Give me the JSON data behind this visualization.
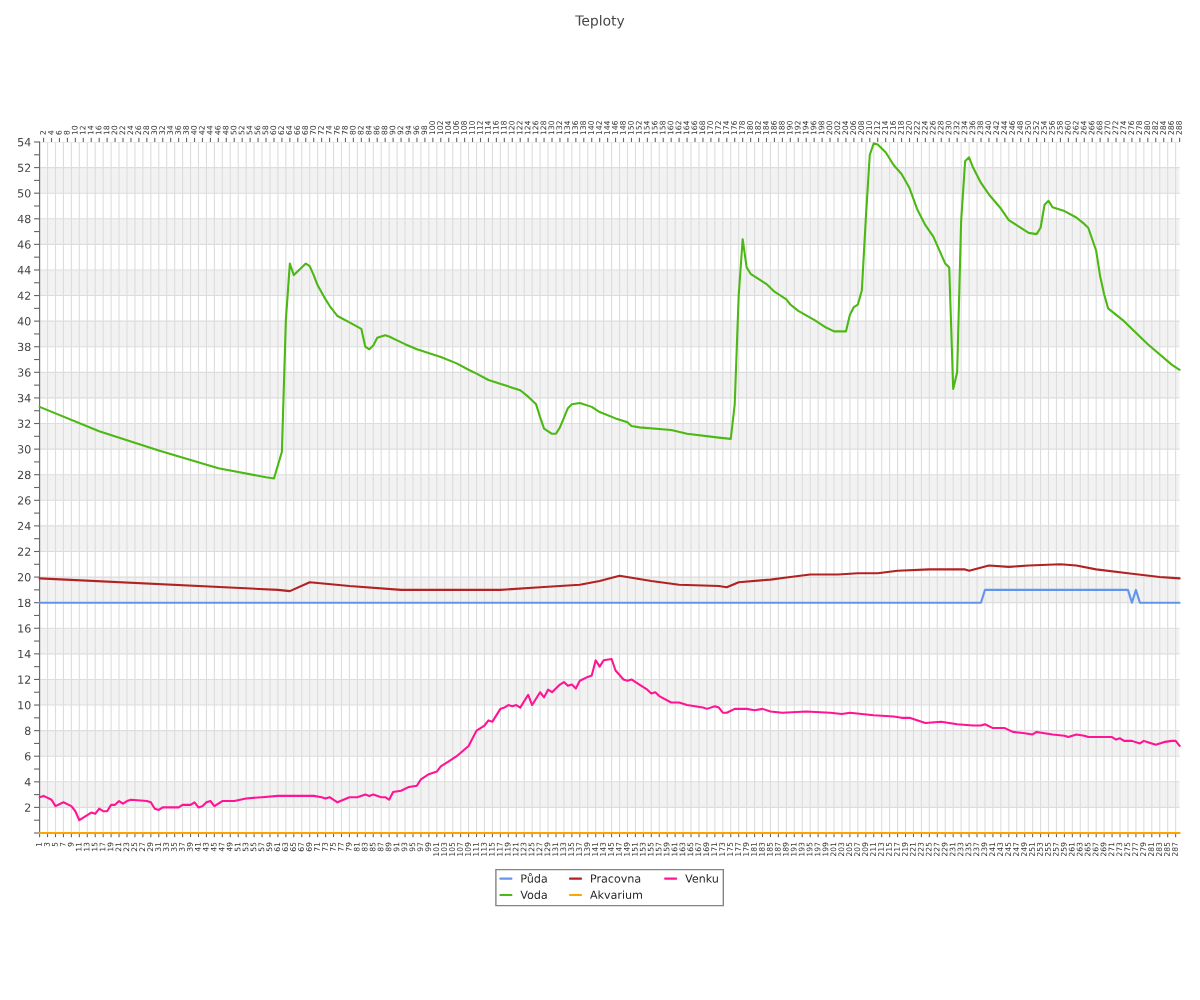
{
  "chart_data": {
    "type": "line",
    "title": "Teploty",
    "xlim": [
      1,
      288
    ],
    "xticks": [
      1,
      3,
      5,
      7,
      9,
      11,
      13,
      15,
      17,
      19,
      21,
      23,
      25,
      27,
      29,
      31,
      33,
      35,
      37,
      39,
      41,
      43,
      45,
      47,
      49,
      51,
      53,
      55,
      57,
      59,
      61,
      63,
      65,
      67,
      69,
      71,
      73,
      75,
      77,
      79,
      81,
      83,
      85,
      87,
      89,
      91,
      93,
      95,
      97,
      99,
      101,
      103,
      105,
      107,
      109,
      111,
      113,
      115,
      117,
      119,
      121,
      123,
      125,
      127,
      129,
      131,
      133,
      135,
      137,
      139,
      141,
      143,
      145,
      147,
      149,
      151,
      153,
      155,
      157,
      159,
      161,
      163,
      165,
      167,
      169,
      171,
      173,
      175,
      177,
      179,
      181,
      183,
      185,
      187,
      189,
      191,
      193,
      195,
      197,
      199,
      201,
      203,
      205,
      207,
      209,
      211,
      213,
      215,
      217,
      219,
      221,
      223,
      225,
      227,
      229,
      231,
      233,
      235,
      237,
      239,
      241,
      243,
      245,
      247,
      249,
      251,
      253,
      255,
      257,
      259,
      261,
      263,
      265,
      267,
      269,
      271,
      273,
      275,
      277,
      279,
      281,
      283,
      285,
      287
    ],
    "x2lim": [
      1,
      288
    ],
    "x2ticks": [
      2,
      4,
      6,
      8,
      10,
      12,
      14,
      16,
      18,
      20,
      22,
      24,
      26,
      28,
      30,
      32,
      34,
      36,
      38,
      40,
      42,
      44,
      46,
      48,
      50,
      52,
      54,
      56,
      58,
      60,
      62,
      64,
      66,
      68,
      70,
      72,
      74,
      76,
      78,
      80,
      82,
      84,
      86,
      88,
      90,
      92,
      94,
      96,
      98,
      100,
      102,
      104,
      106,
      108,
      110,
      112,
      114,
      116,
      118,
      120,
      122,
      124,
      126,
      128,
      130,
      132,
      134,
      136,
      138,
      140,
      142,
      144,
      146,
      148,
      150,
      152,
      154,
      156,
      158,
      160,
      162,
      164,
      166,
      168,
      170,
      172,
      174,
      176,
      178,
      180,
      182,
      184,
      186,
      188,
      190,
      192,
      194,
      196,
      198,
      200,
      202,
      204,
      206,
      208,
      210,
      212,
      214,
      216,
      218,
      220,
      222,
      224,
      226,
      228,
      230,
      232,
      234,
      236,
      238,
      240,
      242,
      244,
      246,
      248,
      250,
      252,
      254,
      256,
      258,
      260,
      262,
      264,
      266,
      268,
      270,
      272,
      274,
      276,
      278,
      280,
      282,
      284,
      286,
      288
    ],
    "ylim": [
      0,
      54
    ],
    "yticks": [
      {
        "value": 0,
        "label": null
      },
      {
        "value": 1,
        "label": null
      },
      2,
      {
        "value": 3,
        "label": null
      },
      4,
      {
        "value": 5,
        "label": null
      },
      6,
      {
        "value": 7,
        "label": null
      },
      8,
      {
        "value": 9,
        "label": null
      },
      10,
      {
        "value": 11,
        "label": null
      },
      12,
      {
        "value": 13,
        "label": null
      },
      14,
      {
        "value": 15,
        "label": null
      },
      16,
      {
        "value": 17,
        "label": null
      },
      18,
      {
        "value": 19,
        "label": null
      },
      20,
      {
        "value": 21,
        "label": null
      },
      22,
      {
        "value": 23,
        "label": null
      },
      24,
      {
        "value": 25,
        "label": null
      },
      26,
      {
        "value": 27,
        "label": null
      },
      28,
      {
        "value": 29,
        "label": null
      },
      30,
      {
        "value": 31,
        "label": null
      },
      32,
      {
        "value": 33,
        "label": null
      },
      34,
      {
        "value": 35,
        "label": null
      },
      36,
      {
        "value": 37,
        "label": null
      },
      38,
      {
        "value": 39,
        "label": null
      },
      40,
      {
        "value": 41,
        "label": null
      },
      42,
      {
        "value": 43,
        "label": null
      },
      44,
      {
        "value": 45,
        "label": null
      },
      46,
      {
        "value": 47,
        "label": null
      },
      48,
      {
        "value": 49,
        "label": null
      },
      50,
      {
        "value": 51,
        "label": null
      },
      52,
      {
        "value": 53,
        "label": null
      },
      54
    ],
    "grid": true,
    "legend": "bottom",
    "marker": "none",
    "line_style": "solid",
    "series": [
      {
        "name": "Půda",
        "color": "#6495ed",
        "x": [
          1,
          238,
          239,
          275,
          276,
          277,
          278,
          288
        ],
        "values": [
          18,
          18,
          19,
          19,
          18,
          19,
          18,
          18
        ]
      },
      {
        "name": "Voda",
        "color": "#4cb814",
        "x": [
          1,
          16,
          31,
          46,
          58,
          60,
          62,
          63,
          64,
          65,
          67,
          68,
          69,
          70,
          71,
          73,
          74,
          76,
          79,
          82,
          83,
          84,
          85,
          86,
          88,
          89,
          91,
          93,
          96,
          102,
          106,
          109,
          111,
          114,
          120,
          122,
          124,
          126,
          127,
          128,
          130,
          131,
          132,
          134,
          135,
          137,
          140,
          142,
          146,
          149,
          150,
          152,
          160,
          164,
          172,
          175,
          176,
          177,
          178,
          179,
          180,
          184,
          186,
          189,
          190,
          192,
          196,
          199,
          201,
          204,
          205,
          206,
          207,
          208,
          209,
          210,
          211,
          212,
          214,
          216,
          218,
          220,
          222,
          224,
          226,
          229,
          230,
          231,
          232,
          233,
          234,
          235,
          236,
          238,
          240,
          243,
          245,
          250,
          252,
          253,
          254,
          255,
          256,
          259,
          262,
          264,
          265,
          267,
          268,
          269,
          270,
          274,
          280,
          286,
          288
        ],
        "values": [
          33.3,
          31.4,
          29.9,
          28.5,
          27.8,
          27.7,
          29.8,
          40.1,
          44.5,
          43.6,
          44.2,
          44.5,
          44.3,
          43.6,
          42.8,
          41.7,
          41.2,
          40.4,
          39.9,
          39.4,
          38.0,
          37.8,
          38.1,
          38.7,
          38.9,
          38.8,
          38.5,
          38.2,
          37.8,
          37.2,
          36.7,
          36.2,
          35.9,
          35.4,
          34.8,
          34.6,
          34.1,
          33.5,
          32.5,
          31.6,
          31.2,
          31.2,
          31.7,
          33.2,
          33.5,
          33.6,
          33.3,
          32.9,
          32.4,
          32.1,
          31.8,
          31.7,
          31.5,
          31.2,
          30.9,
          30.8,
          33.5,
          42.0,
          46.4,
          44.2,
          43.7,
          42.9,
          42.3,
          41.7,
          41.3,
          40.8,
          40.1,
          39.5,
          39.2,
          39.2,
          40.5,
          41.1,
          41.3,
          42.4,
          48.0,
          53.0,
          53.9,
          53.8,
          53.2,
          52.2,
          51.5,
          50.4,
          48.7,
          47.5,
          46.6,
          44.5,
          44.2,
          34.7,
          36.0,
          47.8,
          52.5,
          52.8,
          52.0,
          50.8,
          49.9,
          48.8,
          47.9,
          46.9,
          46.8,
          47.3,
          49.1,
          49.4,
          48.9,
          48.6,
          48.1,
          47.6,
          47.3,
          45.5,
          43.5,
          42.1,
          41.0,
          40.0,
          38.2,
          36.6,
          36.2
        ]
      },
      {
        "name": "Pracovna",
        "color": "#b22222",
        "x": [
          1,
          61,
          64,
          69,
          79,
          92,
          117,
          127,
          137,
          142,
          147,
          155,
          162,
          172,
          174,
          177,
          185,
          190,
          195,
          202,
          207,
          212,
          217,
          225,
          234,
          235,
          240,
          245,
          250,
          258,
          262,
          267,
          275,
          283,
          288
        ],
        "values": [
          19.9,
          19.0,
          18.9,
          19.6,
          19.3,
          19.0,
          19.0,
          19.2,
          19.4,
          19.7,
          20.1,
          19.7,
          19.4,
          19.3,
          19.2,
          19.6,
          19.8,
          20.0,
          20.2,
          20.2,
          20.3,
          20.3,
          20.5,
          20.6,
          20.6,
          20.5,
          20.9,
          20.8,
          20.9,
          21.0,
          20.9,
          20.6,
          20.3,
          20.0,
          19.9
        ]
      },
      {
        "name": "Akvarium",
        "color": "#ffa500",
        "x": [
          1,
          288
        ],
        "values": [
          0,
          0
        ]
      },
      {
        "name": "Venku",
        "color": "#ff1493",
        "x": [
          1,
          2,
          4,
          5,
          7,
          9,
          10,
          11,
          13,
          14,
          15,
          16,
          17,
          18,
          19,
          20,
          21,
          22,
          23,
          24,
          28,
          29,
          30,
          31,
          32,
          36,
          37,
          39,
          40,
          41,
          42,
          43,
          44,
          45,
          47,
          50,
          53,
          57,
          61,
          65,
          70,
          72,
          73,
          74,
          76,
          79,
          81,
          83,
          84,
          85,
          87,
          88,
          89,
          90,
          92,
          94,
          96,
          97,
          99,
          101,
          102,
          104,
          106,
          109,
          111,
          113,
          114,
          115,
          117,
          118,
          119,
          120,
          121,
          122,
          124,
          125,
          127,
          128,
          129,
          130,
          132,
          133,
          134,
          135,
          136,
          137,
          139,
          140,
          141,
          142,
          143,
          145,
          146,
          148,
          149,
          150,
          152,
          154,
          155,
          156,
          157,
          160,
          162,
          164,
          168,
          169,
          171,
          172,
          173,
          174,
          176,
          179,
          181,
          183,
          185,
          188,
          194,
          200,
          203,
          205,
          208,
          211,
          216,
          218,
          220,
          224,
          228,
          232,
          236,
          238,
          239,
          241,
          244,
          246,
          249,
          251,
          252,
          256,
          259,
          260,
          262,
          264,
          265,
          271,
          272,
          273,
          274,
          276,
          278,
          279,
          280,
          282,
          283,
          284,
          286,
          287,
          288
        ],
        "values": [
          2.8,
          2.9,
          2.6,
          2.1,
          2.4,
          2.1,
          1.7,
          1.0,
          1.4,
          1.6,
          1.5,
          1.9,
          1.7,
          1.7,
          2.2,
          2.2,
          2.5,
          2.3,
          2.5,
          2.6,
          2.5,
          2.4,
          1.9,
          1.8,
          2.0,
          2.0,
          2.2,
          2.2,
          2.4,
          2.0,
          2.1,
          2.4,
          2.5,
          2.1,
          2.5,
          2.5,
          2.7,
          2.8,
          2.9,
          2.9,
          2.9,
          2.8,
          2.7,
          2.8,
          2.4,
          2.8,
          2.8,
          3.0,
          2.9,
          3.0,
          2.8,
          2.8,
          2.6,
          3.2,
          3.3,
          3.6,
          3.7,
          4.2,
          4.6,
          4.8,
          5.2,
          5.6,
          6.0,
          6.8,
          8.0,
          8.4,
          8.8,
          8.7,
          9.7,
          9.8,
          10.0,
          9.9,
          10.0,
          9.8,
          10.8,
          10.0,
          11.0,
          10.6,
          11.2,
          11.0,
          11.6,
          11.8,
          11.5,
          11.6,
          11.3,
          11.9,
          12.2,
          12.3,
          13.5,
          13.0,
          13.5,
          13.6,
          12.7,
          12.0,
          11.9,
          12.0,
          11.6,
          11.2,
          10.9,
          11.0,
          10.7,
          10.2,
          10.2,
          10.0,
          9.8,
          9.7,
          9.9,
          9.8,
          9.4,
          9.4,
          9.7,
          9.7,
          9.6,
          9.7,
          9.5,
          9.4,
          9.5,
          9.4,
          9.3,
          9.4,
          9.3,
          9.2,
          9.1,
          9.0,
          9.0,
          8.6,
          8.7,
          8.5,
          8.4,
          8.4,
          8.5,
          8.2,
          8.2,
          7.9,
          7.8,
          7.7,
          7.9,
          7.7,
          7.6,
          7.5,
          7.7,
          7.6,
          7.5,
          7.5,
          7.3,
          7.4,
          7.2,
          7.2,
          7.0,
          7.2,
          7.1,
          6.9,
          7.0,
          7.1,
          7.2,
          7.2,
          6.8
        ]
      }
    ]
  }
}
